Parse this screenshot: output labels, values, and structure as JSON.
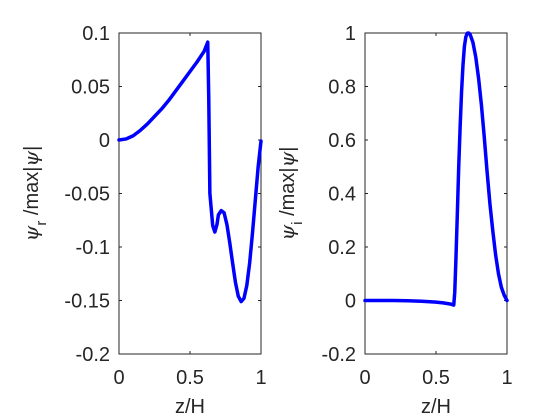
{
  "chart_data": [
    {
      "type": "line",
      "xlabel": "z/H",
      "ylabel": {
        "greek": "ψ",
        "sub": "r",
        "mid": " /max|",
        "greek2": "ψ",
        "end": "|"
      },
      "xlim": [
        0,
        1
      ],
      "ylim": [
        -0.2,
        0.1
      ],
      "xticks": [
        0,
        0.5,
        1
      ],
      "xtick_labels": [
        "0",
        "0.5",
        "1"
      ],
      "yticks": [
        0.1,
        0.05,
        0,
        -0.05,
        -0.1,
        -0.15,
        -0.2
      ],
      "ytick_labels": [
        "0.1",
        "0.05",
        "0",
        "-0.05",
        "-0.1",
        "-0.15",
        "-0.2"
      ],
      "grid": false,
      "series": [
        {
          "color": "#0000ff",
          "x": [
            0,
            0.05,
            0.1,
            0.15,
            0.2,
            0.25,
            0.3,
            0.35,
            0.4,
            0.45,
            0.5,
            0.55,
            0.6,
            0.625,
            0.632,
            0.64,
            0.66,
            0.675,
            0.69,
            0.7,
            0.72,
            0.74,
            0.76,
            0.78,
            0.8,
            0.82,
            0.84,
            0.86,
            0.88,
            0.9,
            0.92,
            0.94,
            0.96,
            0.98,
            1.0
          ],
          "y": [
            0,
            0.001,
            0.004,
            0.009,
            0.015,
            0.022,
            0.029,
            0.037,
            0.046,
            0.055,
            0.064,
            0.073,
            0.083,
            0.0915,
            0.04,
            -0.05,
            -0.08,
            -0.086,
            -0.079,
            -0.07,
            -0.066,
            -0.068,
            -0.079,
            -0.096,
            -0.115,
            -0.133,
            -0.146,
            -0.151,
            -0.148,
            -0.136,
            -0.115,
            -0.087,
            -0.056,
            -0.025,
            -0.001
          ]
        }
      ]
    },
    {
      "type": "line",
      "xlabel": "z/H",
      "ylabel": {
        "greek": "ψ",
        "sub": "i",
        "mid": " /max|",
        "greek2": "ψ",
        "end": "|"
      },
      "xlim": [
        0,
        1
      ],
      "ylim": [
        -0.2,
        1
      ],
      "xticks": [
        0,
        0.5,
        1
      ],
      "xtick_labels": [
        "0",
        "0.5",
        "1"
      ],
      "yticks": [
        1,
        0.8,
        0.6,
        0.4,
        0.2,
        0,
        -0.2
      ],
      "ytick_labels": [
        "1",
        "0.8",
        "0.6",
        "0.4",
        "0.2",
        "0",
        "-0.2"
      ],
      "grid": false,
      "series": [
        {
          "color": "#0000ff",
          "x": [
            0,
            0.1,
            0.2,
            0.3,
            0.4,
            0.5,
            0.55,
            0.6,
            0.625,
            0.632,
            0.64,
            0.65,
            0.66,
            0.67,
            0.68,
            0.69,
            0.7,
            0.71,
            0.72,
            0.73,
            0.74,
            0.76,
            0.78,
            0.8,
            0.82,
            0.84,
            0.86,
            0.88,
            0.9,
            0.92,
            0.94,
            0.96,
            0.98,
            1.0
          ],
          "y": [
            0,
            0,
            0,
            -0.001,
            -0.003,
            -0.006,
            -0.009,
            -0.013,
            -0.017,
            0.03,
            0.15,
            0.32,
            0.5,
            0.65,
            0.78,
            0.88,
            0.95,
            0.985,
            0.999,
            1.0,
            0.995,
            0.965,
            0.91,
            0.83,
            0.73,
            0.61,
            0.48,
            0.36,
            0.26,
            0.17,
            0.1,
            0.05,
            0.02,
            0.0
          ]
        }
      ]
    }
  ]
}
